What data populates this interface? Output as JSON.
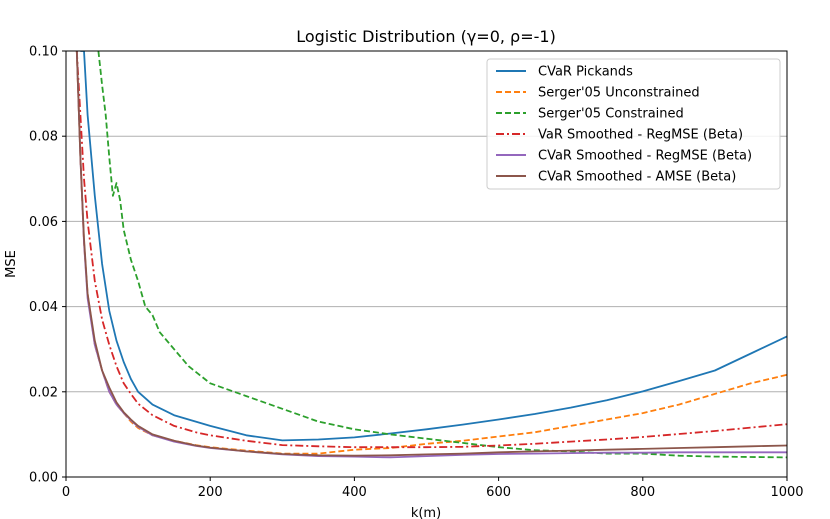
{
  "chart_data": {
    "type": "line",
    "title": "Logistic Distribution (γ=0, ρ=-1)",
    "xlabel": "k(m)",
    "ylabel": "MSE",
    "xlim": [
      0,
      1000
    ],
    "ylim": [
      0,
      0.1
    ],
    "x_ticks": [
      0,
      200,
      400,
      600,
      800,
      1000
    ],
    "y_ticks": [
      0.0,
      0.02,
      0.04,
      0.06,
      0.08,
      0.1
    ],
    "x_tick_labels": [
      "0",
      "200",
      "400",
      "600",
      "800",
      "1000"
    ],
    "y_tick_labels": [
      "0.00",
      "0.02",
      "0.04",
      "0.06",
      "0.08",
      "0.10"
    ],
    "grid": "horizontal",
    "legend_position": "top-right",
    "series": [
      {
        "name": "CVaR Pickands",
        "color": "#1f77b4",
        "dash": "solid",
        "x": [
          20,
          25,
          30,
          40,
          50,
          60,
          70,
          80,
          90,
          100,
          120,
          150,
          180,
          200,
          250,
          300,
          350,
          400,
          450,
          500,
          550,
          600,
          650,
          700,
          750,
          800,
          850,
          900,
          950,
          1000
        ],
        "y": [
          0.1,
          0.1,
          0.085,
          0.066,
          0.05,
          0.039,
          0.032,
          0.027,
          0.023,
          0.02,
          0.017,
          0.0145,
          0.013,
          0.012,
          0.0098,
          0.0086,
          0.0088,
          0.0093,
          0.0102,
          0.0112,
          0.0123,
          0.0135,
          0.0148,
          0.0163,
          0.018,
          0.0201,
          0.0225,
          0.025,
          0.029,
          0.033
        ]
      },
      {
        "name": "Serger'05 Unconstrained",
        "color": "#ff7f0e",
        "dash": "dashed",
        "x": [
          15,
          20,
          25,
          30,
          40,
          50,
          60,
          70,
          80,
          90,
          100,
          120,
          150,
          180,
          200,
          250,
          300,
          350,
          400,
          450,
          500,
          550,
          600,
          650,
          700,
          750,
          800,
          850,
          900,
          950,
          1000
        ],
        "y": [
          0.1,
          0.075,
          0.055,
          0.043,
          0.031,
          0.025,
          0.02,
          0.017,
          0.015,
          0.013,
          0.0115,
          0.0098,
          0.0085,
          0.0075,
          0.007,
          0.0062,
          0.0055,
          0.0055,
          0.0064,
          0.0068,
          0.0078,
          0.0085,
          0.0095,
          0.0105,
          0.012,
          0.0135,
          0.015,
          0.017,
          0.0195,
          0.022,
          0.024
        ]
      },
      {
        "name": "Serger'05 Constrained",
        "color": "#2ca02c",
        "dash": "dashed",
        "x": [
          45,
          50,
          55,
          60,
          65,
          70,
          75,
          80,
          90,
          100,
          110,
          120,
          130,
          150,
          170,
          200,
          250,
          300,
          350,
          400,
          450,
          500,
          550,
          600,
          650,
          700,
          750,
          800,
          850,
          900,
          950,
          1000
        ],
        "y": [
          0.1,
          0.092,
          0.085,
          0.075,
          0.066,
          0.069,
          0.065,
          0.058,
          0.051,
          0.046,
          0.04,
          0.038,
          0.034,
          0.03,
          0.026,
          0.022,
          0.019,
          0.016,
          0.013,
          0.0112,
          0.01,
          0.009,
          0.008,
          0.007,
          0.0063,
          0.006,
          0.0055,
          0.0055,
          0.005,
          0.0048,
          0.0047,
          0.0046
        ]
      },
      {
        "name": "VaR Smoothed - RegMSE (Beta)",
        "color": "#d62728",
        "dash": "dashdot",
        "x": [
          15,
          20,
          25,
          30,
          40,
          50,
          60,
          70,
          80,
          90,
          100,
          120,
          150,
          180,
          200,
          250,
          300,
          350,
          400,
          450,
          500,
          550,
          600,
          650,
          700,
          750,
          800,
          850,
          900,
          950,
          1000
        ],
        "y": [
          0.1,
          0.085,
          0.07,
          0.06,
          0.046,
          0.037,
          0.031,
          0.026,
          0.022,
          0.0195,
          0.0172,
          0.0145,
          0.012,
          0.0105,
          0.0098,
          0.0085,
          0.0075,
          0.0072,
          0.007,
          0.007,
          0.007,
          0.0071,
          0.0074,
          0.0078,
          0.0083,
          0.0088,
          0.0094,
          0.0101,
          0.0108,
          0.0116,
          0.0124
        ]
      },
      {
        "name": "CVaR Smoothed - RegMSE (Beta)",
        "color": "#9467bd",
        "dash": "solid",
        "x": [
          15,
          20,
          25,
          30,
          40,
          50,
          60,
          70,
          80,
          90,
          100,
          120,
          150,
          180,
          200,
          250,
          300,
          350,
          400,
          450,
          500,
          550,
          600,
          650,
          700,
          750,
          800,
          850,
          900,
          950,
          1000
        ],
        "y": [
          0.1,
          0.075,
          0.055,
          0.042,
          0.031,
          0.025,
          0.02,
          0.017,
          0.015,
          0.0133,
          0.0118,
          0.0098,
          0.0083,
          0.0073,
          0.0068,
          0.006,
          0.0053,
          0.0049,
          0.0048,
          0.0046,
          0.0049,
          0.0052,
          0.0054,
          0.0055,
          0.0056,
          0.0057,
          0.0057,
          0.0058,
          0.0058,
          0.0058,
          0.0058
        ]
      },
      {
        "name": "CVaR Smoothed - AMSE (Beta)",
        "color": "#8c564b",
        "dash": "solid",
        "x": [
          15,
          20,
          25,
          30,
          40,
          50,
          60,
          70,
          80,
          90,
          100,
          120,
          150,
          180,
          200,
          250,
          300,
          350,
          400,
          450,
          500,
          550,
          600,
          650,
          700,
          750,
          800,
          850,
          900,
          950,
          1000
        ],
        "y": [
          0.1,
          0.075,
          0.056,
          0.043,
          0.032,
          0.025,
          0.021,
          0.0175,
          0.0152,
          0.0135,
          0.012,
          0.01,
          0.0085,
          0.0074,
          0.0069,
          0.006,
          0.0054,
          0.0051,
          0.005,
          0.0051,
          0.0053,
          0.0055,
          0.0058,
          0.006,
          0.0062,
          0.0064,
          0.0066,
          0.0068,
          0.007,
          0.0072,
          0.0074
        ]
      }
    ]
  }
}
